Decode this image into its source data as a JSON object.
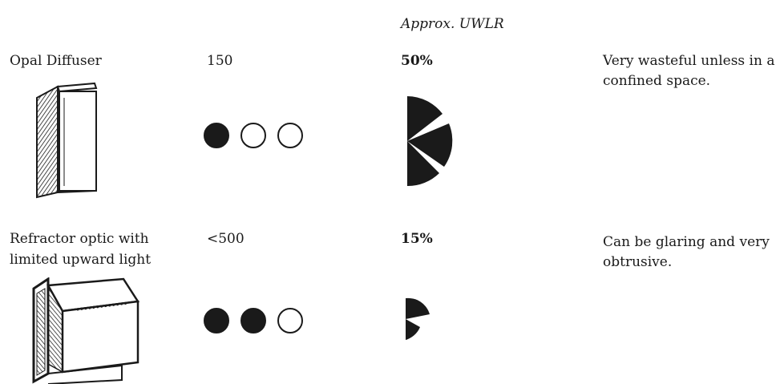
{
  "header": {
    "uwlr_label": "Approx. UWLR"
  },
  "rows": [
    {
      "name": "Opal Diffuser",
      "value": "150",
      "uwlr": "50%",
      "uwlr_fraction": 0.5,
      "rating_filled": 1,
      "rating_total": 3,
      "note": "Very wasteful unless in a confined space."
    },
    {
      "name_line1": "Refractor optic with",
      "name_line2": "limited upward light",
      "value": "<500",
      "uwlr": "15%",
      "uwlr_fraction": 0.15,
      "rating_filled": 2,
      "rating_total": 3,
      "note": "Can be glaring and very obtrusive."
    }
  ],
  "colors": {
    "ink": "#1a1a1a",
    "paper": "#ffffff"
  }
}
